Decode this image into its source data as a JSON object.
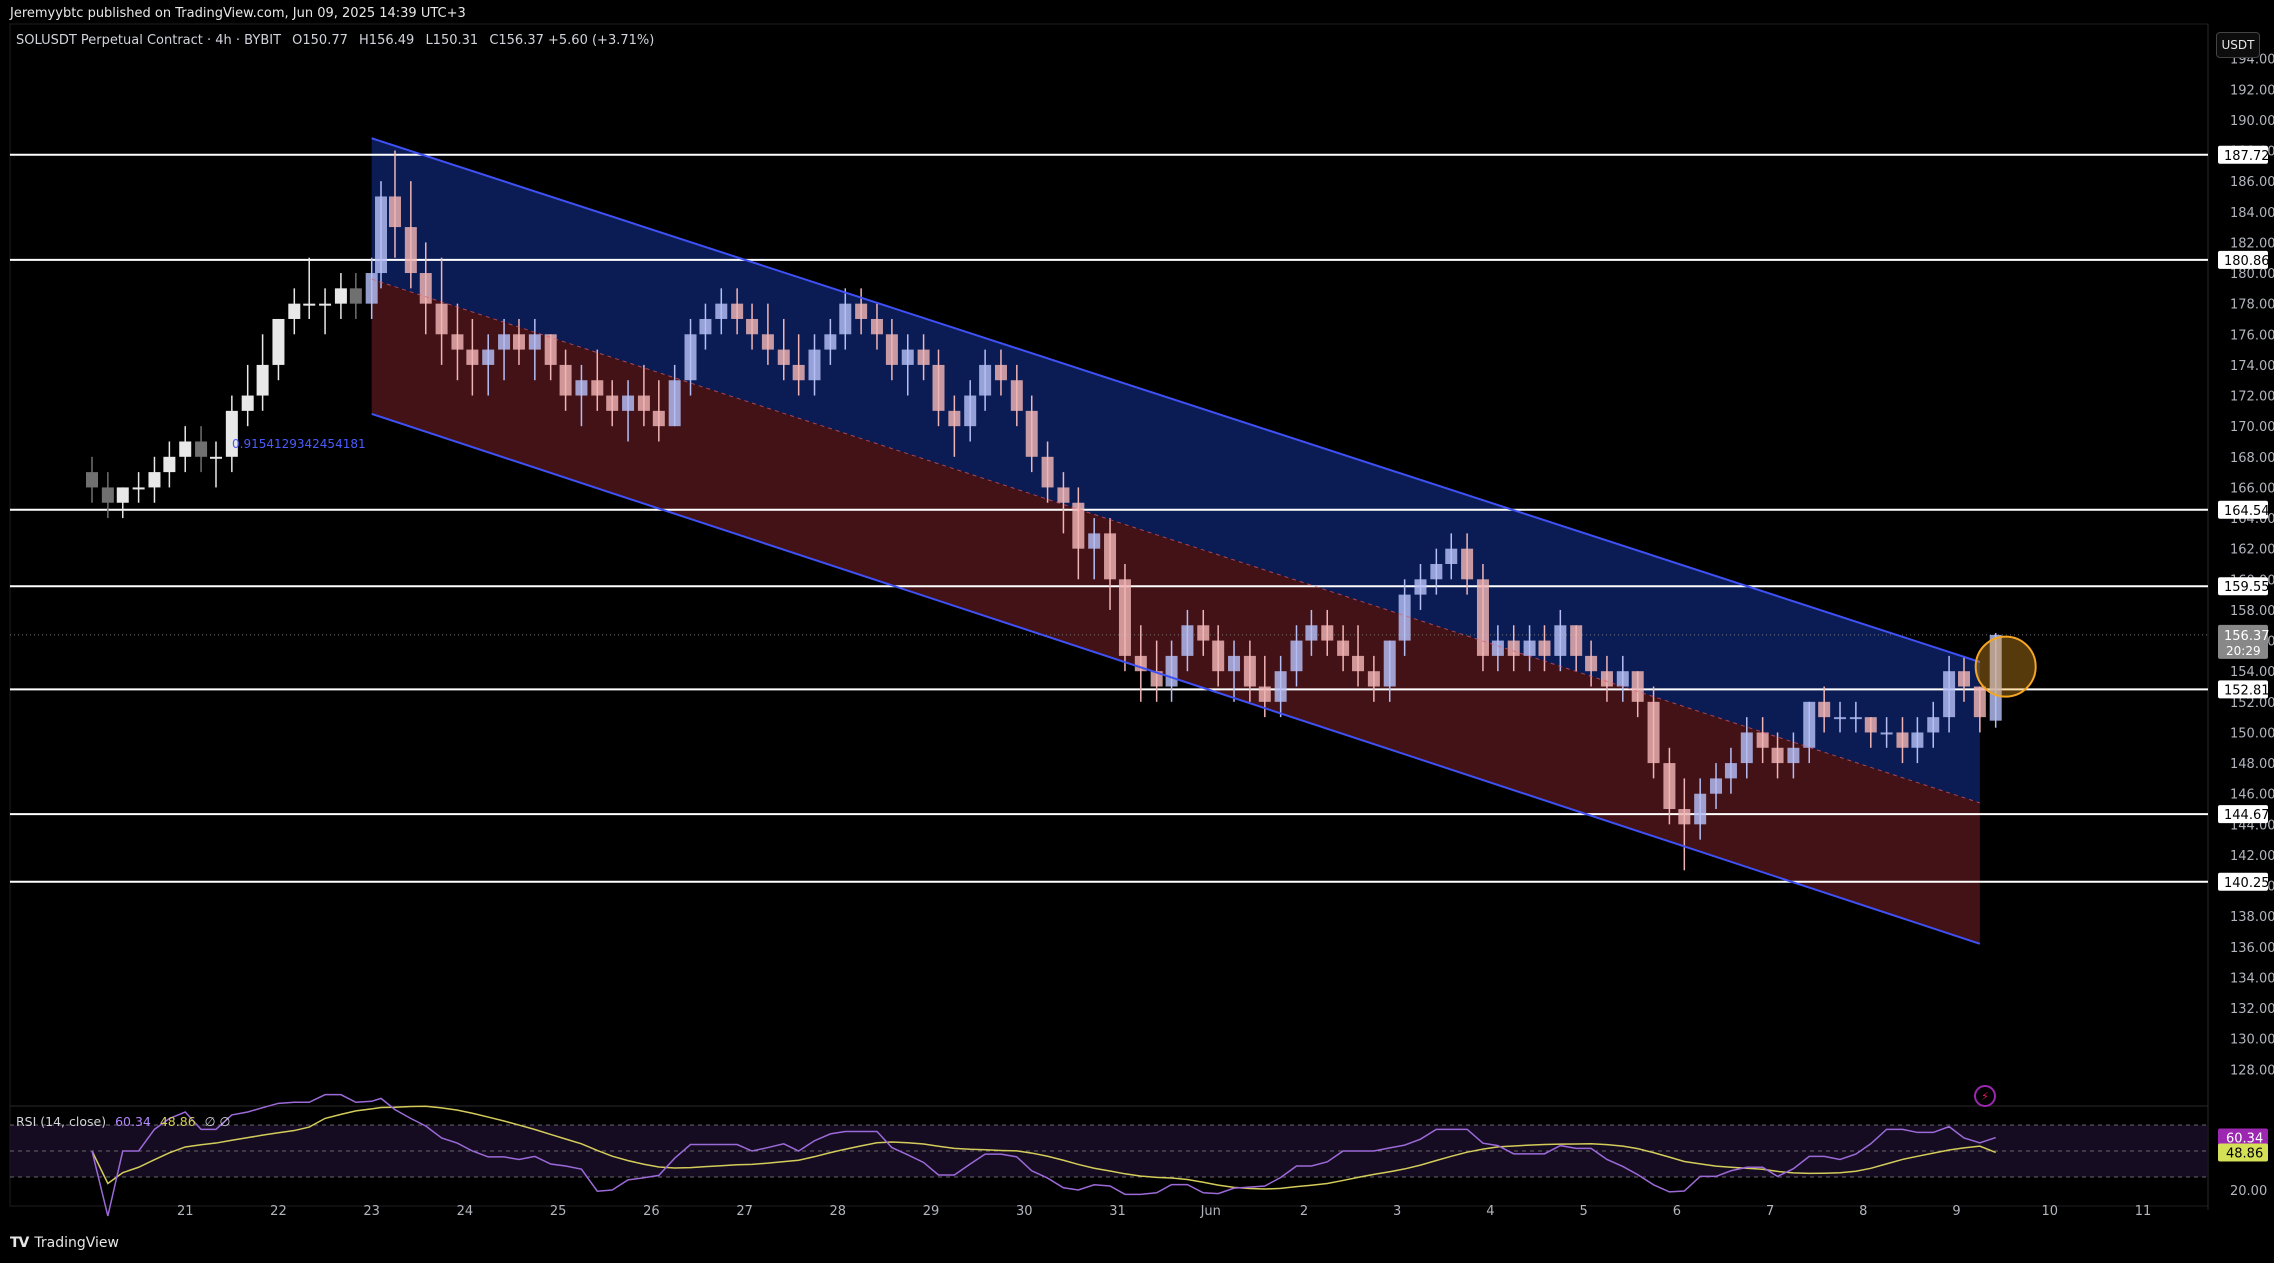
{
  "credit": "Jeremyybtc published on TradingView.com, Jun 09, 2025 14:39 UTC+3",
  "symbol": {
    "name": "SOLUSDT Perpetual Contract · 4h · BYBIT",
    "open": "O150.77",
    "high": "H156.49",
    "low": "L150.31",
    "close": "C156.37 +5.60 (+3.71%)"
  },
  "currency_button": "USDT",
  "fib_label": "0.9154129342454181",
  "rsi_legend": {
    "name": "RSI (14, close)",
    "rsi": "60.34",
    "ma": "48.86",
    "extra": "∅ ∅"
  },
  "footer": {
    "logo": "TV",
    "brand": "TradingView"
  },
  "colors": {
    "background": "#000000",
    "channel_upper_fill": "#0c1f5e",
    "channel_lower_fill": "#4a1418",
    "channel_line": "#3f51f5",
    "up_candle": "#b4bef5",
    "down_candle": "#f0b4b4",
    "rsi_line": "#9c6ad8",
    "rsi_ma": "#d4cc5a"
  },
  "chart_data": {
    "type": "candlestick",
    "y_range": [
      126,
      196
    ],
    "y_ticks": [
      "194.00",
      "192.00",
      "190.00",
      "188.00",
      "186.00",
      "184.00",
      "182.00",
      "180.00",
      "178.00",
      "176.00",
      "174.00",
      "172.00",
      "170.00",
      "168.00",
      "166.00",
      "164.00",
      "162.00",
      "160.00",
      "158.00",
      "156.00",
      "154.00",
      "152.00",
      "150.00",
      "148.00",
      "146.00",
      "144.00",
      "142.00",
      "140.00",
      "138.00",
      "136.00",
      "134.00",
      "132.00",
      "130.00",
      "128.00"
    ],
    "x_labels": [
      {
        "label": "21",
        "day": 21
      },
      {
        "label": "22",
        "day": 22
      },
      {
        "label": "23",
        "day": 23
      },
      {
        "label": "24",
        "day": 24
      },
      {
        "label": "25",
        "day": 25
      },
      {
        "label": "26",
        "day": 26
      },
      {
        "label": "27",
        "day": 27
      },
      {
        "label": "28",
        "day": 28
      },
      {
        "label": "29",
        "day": 29
      },
      {
        "label": "30",
        "day": 30
      },
      {
        "label": "31",
        "day": 31
      },
      {
        "label": "Jun",
        "day": 32
      },
      {
        "label": "2",
        "day": 33
      },
      {
        "label": "3",
        "day": 34
      },
      {
        "label": "4",
        "day": 35
      },
      {
        "label": "5",
        "day": 36
      },
      {
        "label": "6",
        "day": 37
      },
      {
        "label": "7",
        "day": 38
      },
      {
        "label": "8",
        "day": 39
      },
      {
        "label": "9",
        "day": 40
      },
      {
        "label": "10",
        "day": 41
      },
      {
        "label": "11",
        "day": 42
      }
    ],
    "horizontal_levels": [
      {
        "value": 187.72,
        "label": "187.72"
      },
      {
        "value": 180.86,
        "label": "180.86"
      },
      {
        "value": 164.54,
        "label": "164.54"
      },
      {
        "value": 159.55,
        "label": "159.55"
      },
      {
        "value": 152.81,
        "label": "152.81"
      },
      {
        "value": 144.67,
        "label": "144.67"
      },
      {
        "value": 140.25,
        "label": "140.25"
      }
    ],
    "current_price": {
      "value": 156.37,
      "label": "156.37",
      "countdown": "20:29"
    },
    "channel": {
      "start_day": 23.0,
      "end_day": 40.25,
      "upper": [
        188.8,
        154.6
      ],
      "middle": [
        179.6,
        145.4
      ],
      "lower": [
        170.8,
        136.2
      ]
    },
    "candles": [
      [
        20.0,
        167,
        168,
        165,
        166
      ],
      [
        20.17,
        166,
        167,
        164,
        165
      ],
      [
        20.33,
        165,
        166,
        164,
        166
      ],
      [
        20.5,
        166,
        167,
        165,
        166
      ],
      [
        20.67,
        166,
        168,
        165,
        167
      ],
      [
        20.83,
        167,
        169,
        166,
        168
      ],
      [
        21.0,
        168,
        170,
        167,
        169
      ],
      [
        21.17,
        169,
        170,
        167,
        168
      ],
      [
        21.33,
        168,
        169,
        166,
        168
      ],
      [
        21.5,
        168,
        172,
        167,
        171
      ],
      [
        21.67,
        171,
        174,
        170,
        172
      ],
      [
        21.83,
        172,
        176,
        171,
        174
      ],
      [
        22.0,
        174,
        177,
        173,
        177
      ],
      [
        22.17,
        177,
        179,
        176,
        178
      ],
      [
        22.33,
        178,
        181,
        177,
        178
      ],
      [
        22.5,
        178,
        179,
        176,
        178
      ],
      [
        22.67,
        178,
        180,
        177,
        179
      ],
      [
        22.83,
        179,
        180,
        177,
        178
      ],
      [
        23.0,
        178,
        181,
        177,
        180
      ],
      [
        23.1,
        180,
        186,
        179,
        185
      ],
      [
        23.25,
        185,
        188,
        181,
        183
      ],
      [
        23.42,
        183,
        186,
        179,
        180
      ],
      [
        23.58,
        180,
        182,
        176,
        178
      ],
      [
        23.75,
        178,
        181,
        174,
        176
      ],
      [
        23.92,
        176,
        178,
        173,
        175
      ],
      [
        24.08,
        175,
        177,
        172,
        174
      ],
      [
        24.25,
        174,
        176,
        172,
        175
      ],
      [
        24.42,
        175,
        177,
        173,
        176
      ],
      [
        24.58,
        176,
        177,
        174,
        175
      ],
      [
        24.75,
        175,
        177,
        173,
        176
      ],
      [
        24.92,
        176,
        176,
        173,
        174
      ],
      [
        25.08,
        174,
        175,
        171,
        172
      ],
      [
        25.25,
        172,
        174,
        170,
        173
      ],
      [
        25.42,
        173,
        175,
        171,
        172
      ],
      [
        25.58,
        172,
        173,
        170,
        171
      ],
      [
        25.75,
        171,
        173,
        169,
        172
      ],
      [
        25.92,
        172,
        174,
        170,
        171
      ],
      [
        26.08,
        171,
        173,
        169,
        170
      ],
      [
        26.25,
        170,
        174,
        170,
        173
      ],
      [
        26.42,
        173,
        177,
        172,
        176
      ],
      [
        26.58,
        176,
        178,
        175,
        177
      ],
      [
        26.75,
        177,
        179,
        176,
        178
      ],
      [
        26.92,
        178,
        179,
        176,
        177
      ],
      [
        27.08,
        177,
        178,
        175,
        176
      ],
      [
        27.25,
        176,
        178,
        174,
        175
      ],
      [
        27.42,
        175,
        177,
        173,
        174
      ],
      [
        27.58,
        174,
        176,
        172,
        173
      ],
      [
        27.75,
        173,
        176,
        172,
        175
      ],
      [
        27.92,
        175,
        177,
        174,
        176
      ],
      [
        28.08,
        176,
        179,
        175,
        178
      ],
      [
        28.25,
        178,
        179,
        176,
        177
      ],
      [
        28.42,
        177,
        178,
        175,
        176
      ],
      [
        28.58,
        176,
        177,
        173,
        174
      ],
      [
        28.75,
        174,
        176,
        172,
        175
      ],
      [
        28.92,
        175,
        176,
        173,
        174
      ],
      [
        29.08,
        174,
        175,
        170,
        171
      ],
      [
        29.25,
        171,
        172,
        168,
        170
      ],
      [
        29.42,
        170,
        173,
        169,
        172
      ],
      [
        29.58,
        172,
        175,
        171,
        174
      ],
      [
        29.75,
        174,
        175,
        172,
        173
      ],
      [
        29.92,
        173,
        174,
        170,
        171
      ],
      [
        30.08,
        171,
        172,
        167,
        168
      ],
      [
        30.25,
        168,
        169,
        165,
        166
      ],
      [
        30.42,
        166,
        167,
        163,
        165
      ],
      [
        30.58,
        165,
        166,
        160,
        162
      ],
      [
        30.75,
        162,
        164,
        160,
        163
      ],
      [
        30.92,
        163,
        164,
        158,
        160
      ],
      [
        31.08,
        160,
        161,
        154,
        155
      ],
      [
        31.25,
        155,
        157,
        152,
        154
      ],
      [
        31.42,
        154,
        156,
        152,
        153
      ],
      [
        31.58,
        153,
        156,
        152,
        155
      ],
      [
        31.75,
        155,
        158,
        154,
        157
      ],
      [
        31.92,
        157,
        158,
        155,
        156
      ],
      [
        32.08,
        156,
        157,
        153,
        154
      ],
      [
        32.25,
        154,
        156,
        152,
        155
      ],
      [
        32.42,
        155,
        156,
        152,
        153
      ],
      [
        32.58,
        153,
        155,
        151,
        152
      ],
      [
        32.75,
        152,
        155,
        151,
        154
      ],
      [
        32.92,
        154,
        157,
        153,
        156
      ],
      [
        33.08,
        156,
        158,
        155,
        157
      ],
      [
        33.25,
        157,
        158,
        155,
        156
      ],
      [
        33.42,
        156,
        157,
        154,
        155
      ],
      [
        33.58,
        155,
        157,
        153,
        154
      ],
      [
        33.75,
        154,
        155,
        152,
        153
      ],
      [
        33.92,
        153,
        156,
        152,
        156
      ],
      [
        34.08,
        156,
        160,
        155,
        159
      ],
      [
        34.25,
        159,
        161,
        158,
        160
      ],
      [
        34.42,
        160,
        162,
        159,
        161
      ],
      [
        34.58,
        161,
        163,
        160,
        162
      ],
      [
        34.75,
        162,
        163,
        159,
        160
      ],
      [
        34.92,
        160,
        161,
        154,
        155
      ],
      [
        35.08,
        155,
        157,
        154,
        156
      ],
      [
        35.25,
        156,
        157,
        154,
        155
      ],
      [
        35.42,
        155,
        157,
        154,
        156
      ],
      [
        35.58,
        156,
        157,
        154,
        155
      ],
      [
        35.75,
        155,
        158,
        154,
        157
      ],
      [
        35.92,
        157,
        157,
        154,
        155
      ],
      [
        36.08,
        155,
        156,
        153,
        154
      ],
      [
        36.25,
        154,
        155,
        152,
        153
      ],
      [
        36.42,
        153,
        155,
        152,
        154
      ],
      [
        36.58,
        154,
        154,
        151,
        152
      ],
      [
        36.75,
        152,
        153,
        147,
        148
      ],
      [
        36.92,
        148,
        149,
        144,
        145
      ],
      [
        37.08,
        145,
        147,
        141,
        144
      ],
      [
        37.25,
        144,
        147,
        143,
        146
      ],
      [
        37.42,
        146,
        148,
        145,
        147
      ],
      [
        37.58,
        147,
        149,
        146,
        148
      ],
      [
        37.75,
        148,
        151,
        147,
        150
      ],
      [
        37.92,
        150,
        151,
        148,
        149
      ],
      [
        38.08,
        149,
        150,
        147,
        148
      ],
      [
        38.25,
        148,
        150,
        147,
        149
      ],
      [
        38.42,
        149,
        152,
        148,
        152
      ],
      [
        38.58,
        152,
        153,
        150,
        151
      ],
      [
        38.75,
        151,
        152,
        150,
        151
      ],
      [
        38.92,
        151,
        152,
        150,
        151
      ],
      [
        39.08,
        151,
        151,
        149,
        150
      ],
      [
        39.25,
        150,
        151,
        149,
        150
      ],
      [
        39.42,
        150,
        151,
        148,
        149
      ],
      [
        39.58,
        149,
        151,
        148,
        150
      ],
      [
        39.75,
        150,
        152,
        149,
        151
      ],
      [
        39.92,
        151,
        155,
        150,
        154
      ],
      [
        40.08,
        154,
        155,
        152,
        153
      ],
      [
        40.25,
        153,
        153,
        150,
        151
      ],
      [
        40.42,
        150.77,
        156.49,
        150.31,
        156.37
      ]
    ],
    "rsi": {
      "range": [
        20,
        80
      ],
      "tick": "20.00",
      "levels": [
        70,
        50,
        30
      ],
      "rsi_value_label": "60.34",
      "ma_value_label": "48.86"
    }
  }
}
